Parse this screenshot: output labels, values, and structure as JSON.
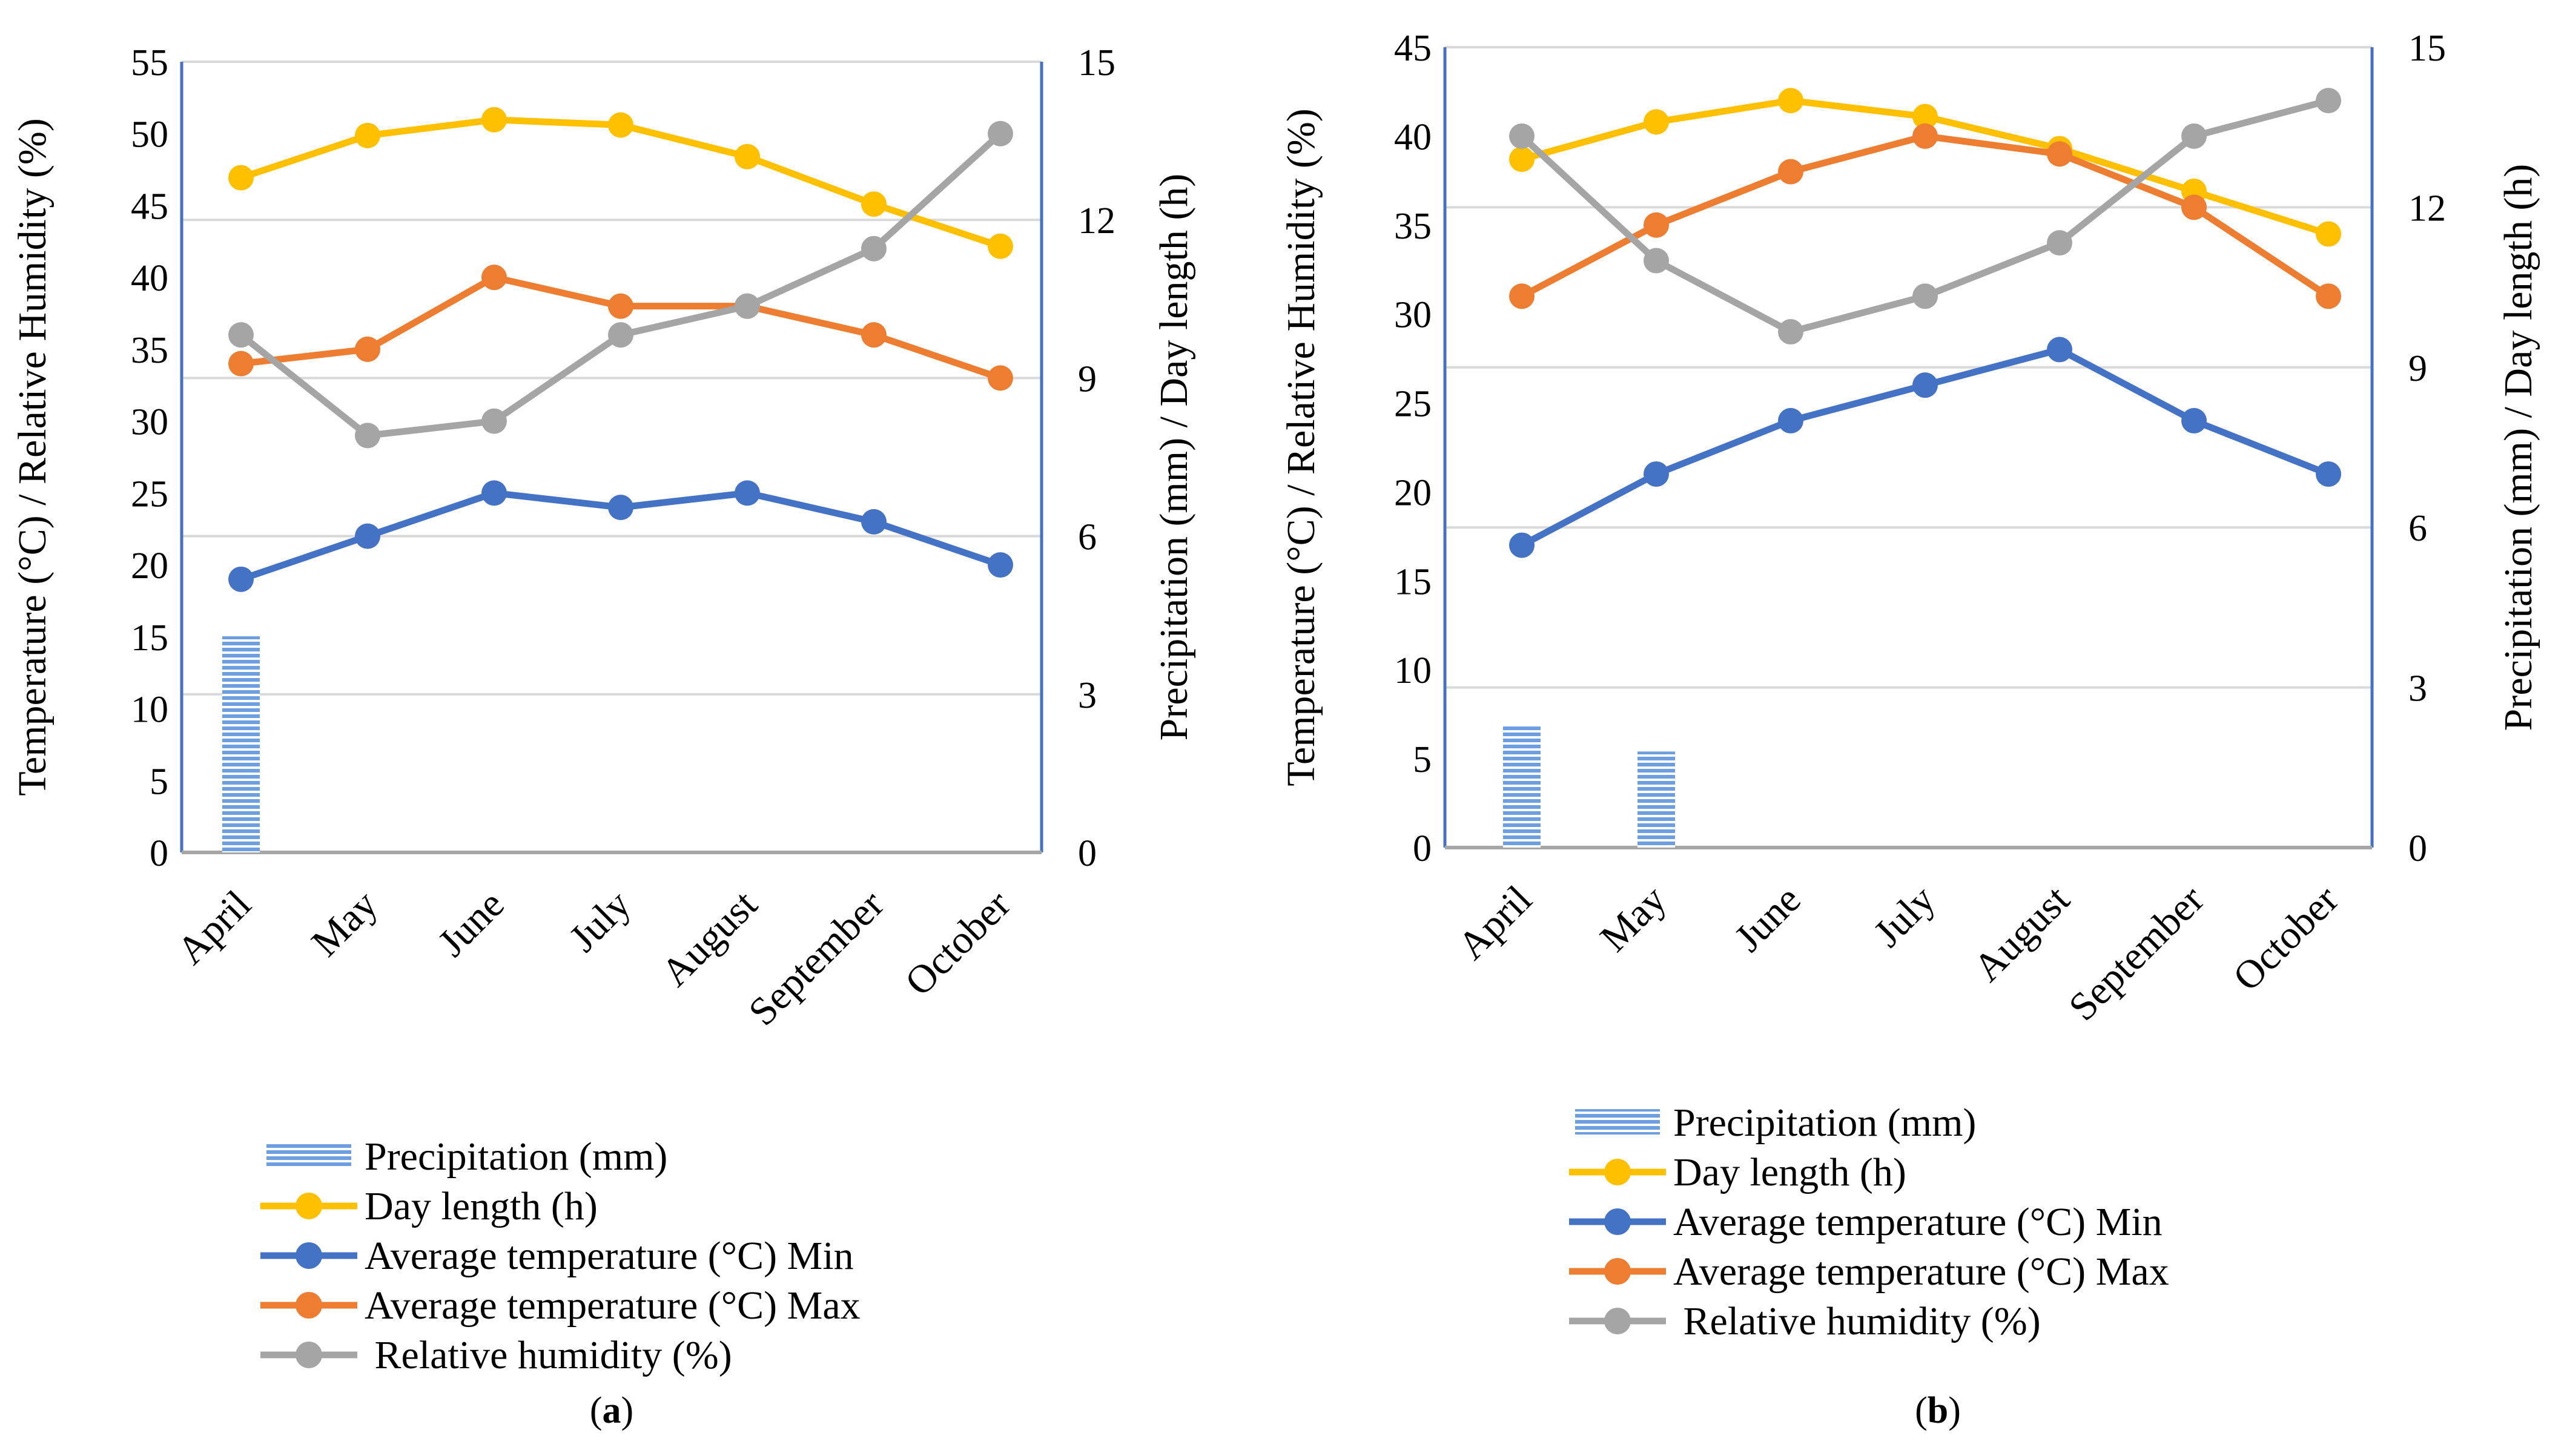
{
  "colors": {
    "precipitation": "#6d9ee0",
    "day_length": "#ffc000",
    "temp_min": "#4472c4",
    "temp_max": "#ed7d31",
    "humidity": "#a5a5a5",
    "axis_left": "#a6a6a6",
    "axis_right": "#4472c4",
    "grid": "#d9d9d9"
  },
  "chart_data": [
    {
      "panel_label": "a",
      "type": "line",
      "categories": [
        "April",
        "May",
        "June",
        "July",
        "August",
        "September",
        "October"
      ],
      "ylabel_left": "Temperature (°C) / Relative Humidity (%)",
      "ylabel_right": "Precipitation (mm) / Day length (h)",
      "ylim_left": [
        0,
        55
      ],
      "yticks_left": [
        0,
        5,
        10,
        15,
        20,
        25,
        30,
        35,
        40,
        45,
        50,
        55
      ],
      "ylim_right": [
        0,
        15
      ],
      "yticks_right": [
        0,
        3,
        6,
        9,
        12,
        15
      ],
      "series": [
        {
          "key": "precipitation",
          "name": "Precipitation (mm)",
          "type": "bar",
          "axis": "right",
          "values": [
            4.1,
            0,
            0,
            0,
            0,
            0,
            0
          ]
        },
        {
          "key": "day_length",
          "name": "Day length (h)",
          "type": "line",
          "axis": "right",
          "values": [
            12.8,
            13.6,
            13.9,
            13.8,
            13.2,
            12.3,
            11.5
          ]
        },
        {
          "key": "temp_min",
          "name": "Average temperature (°C) Min",
          "type": "line",
          "axis": "left",
          "values": [
            19,
            22,
            25,
            24,
            25,
            23,
            20
          ]
        },
        {
          "key": "temp_max",
          "name": "Average temperature (°C) Max",
          "type": "line",
          "axis": "left",
          "values": [
            34,
            35,
            40,
            38,
            38,
            36,
            33
          ]
        },
        {
          "key": "humidity",
          "name": " Relative humidity (%)",
          "type": "line",
          "axis": "left",
          "values": [
            36,
            29,
            30,
            36,
            38,
            42,
            50
          ]
        }
      ]
    },
    {
      "panel_label": "b",
      "type": "line",
      "categories": [
        "April",
        "May",
        "June",
        "July",
        "August",
        "September",
        "October"
      ],
      "ylabel_left": "Temperature (°C) / Relative Humidity (%)",
      "ylabel_right": "Precipitation (mm) / Day length (h)",
      "ylim_left": [
        0,
        45
      ],
      "yticks_left": [
        0,
        5,
        10,
        15,
        20,
        25,
        30,
        35,
        40,
        45
      ],
      "ylim_right": [
        0,
        15
      ],
      "yticks_right": [
        0,
        3,
        6,
        9,
        12,
        15
      ],
      "series": [
        {
          "key": "precipitation",
          "name": "Precipitation (mm)",
          "type": "bar",
          "axis": "right",
          "values": [
            2.3,
            1.8,
            0,
            0,
            0,
            0,
            0
          ]
        },
        {
          "key": "day_length",
          "name": "Day length (h)",
          "type": "line",
          "axis": "right",
          "values": [
            12.9,
            13.6,
            14.0,
            13.7,
            13.1,
            12.3,
            11.5
          ]
        },
        {
          "key": "temp_min",
          "name": "Average temperature (°C) Min",
          "type": "line",
          "axis": "left",
          "values": [
            17,
            21,
            24,
            26,
            28,
            24,
            21
          ]
        },
        {
          "key": "temp_max",
          "name": "Average temperature (°C) Max",
          "type": "line",
          "axis": "left",
          "values": [
            31,
            35,
            38,
            40,
            39,
            36,
            31
          ]
        },
        {
          "key": "humidity",
          "name": " Relative humidity (%)",
          "type": "line",
          "axis": "left",
          "values": [
            40,
            33,
            29,
            31,
            34,
            40,
            42
          ]
        }
      ]
    }
  ]
}
